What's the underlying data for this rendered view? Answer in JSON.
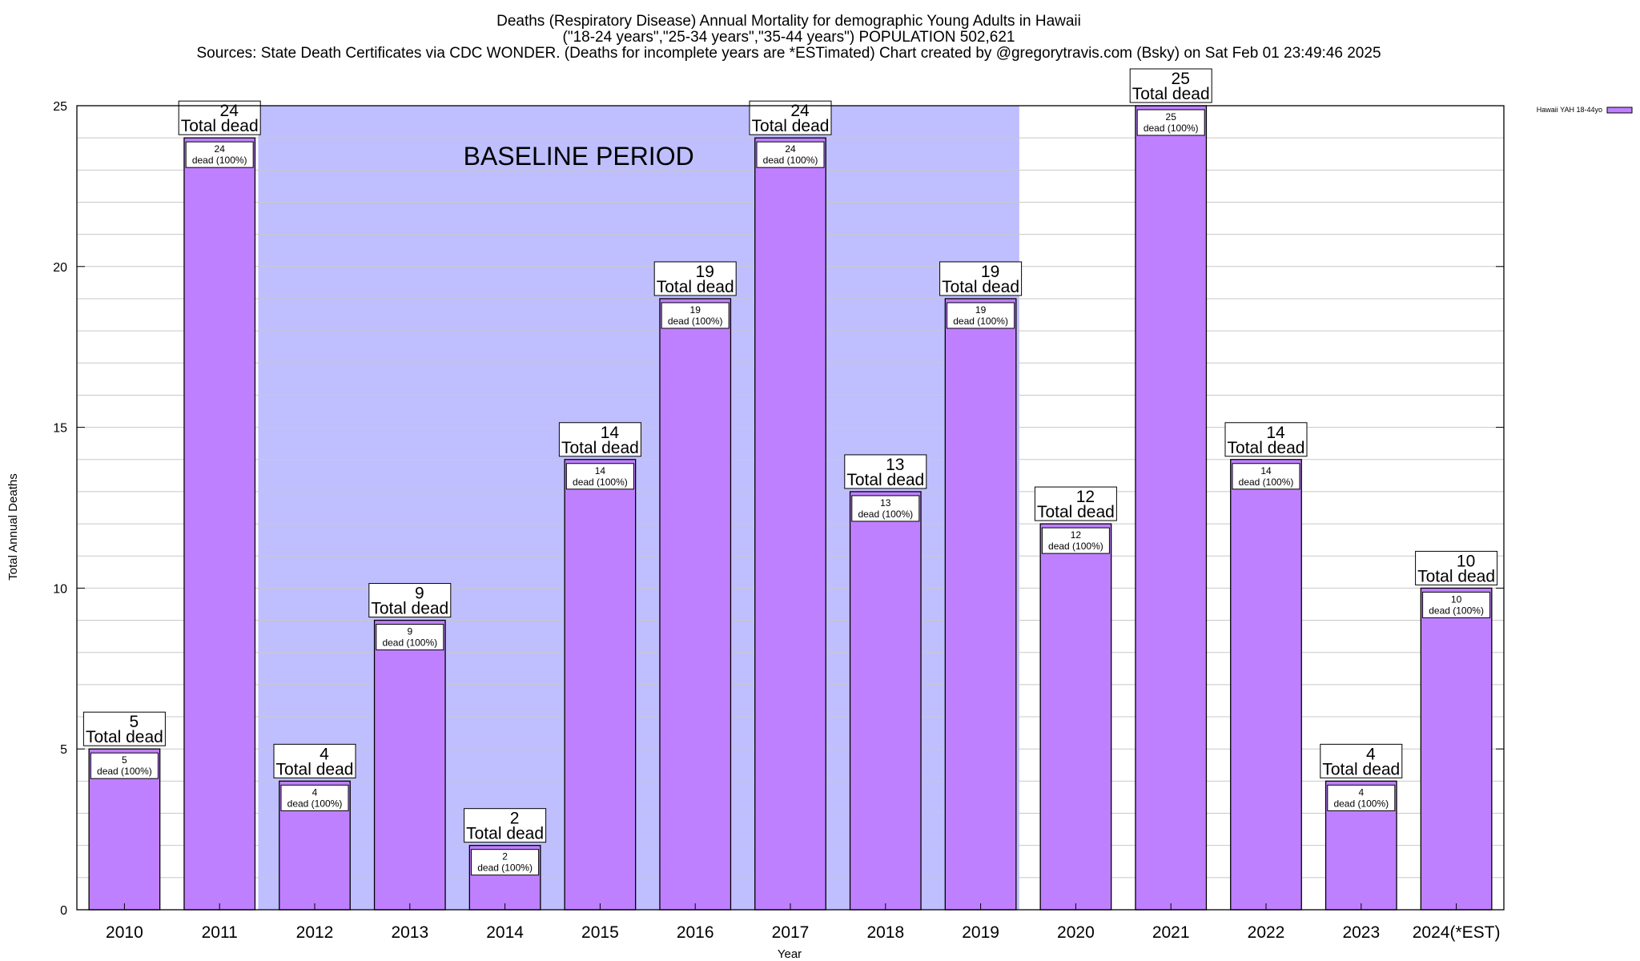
{
  "chart": {
    "title_line1": "Deaths (Respiratory Disease) Annual Mortality for demographic Young Adults in Hawaii",
    "title_line2": "(\"18-24 years\",\"25-34 years\",\"35-44 years\") POPULATION 502,621",
    "title_line3": "Sources: State Death Certificates via CDC WONDER. (Deaths for incomplete years are *ESTimated)               Chart created by @gregorytravis.com (Bsky) on Sat Feb 01 23:49:46 2025",
    "xlabel": "Year",
    "ylabel": "Total Annual Deaths",
    "band_label": "BASELINE PERIOD",
    "legend_label": "Hawaii YAH 18-44yo",
    "total_label": "Total dead",
    "inner_label": "dead (100%)"
  },
  "colors": {
    "bar_fill": "#bf80ff",
    "bar_stroke": "#000000",
    "band_fill": "#bfbfff",
    "grid": "#c8c8c8",
    "label_box_fill": "#ffffff"
  },
  "chart_data": {
    "type": "bar",
    "categories": [
      "2010",
      "2011",
      "2012",
      "2013",
      "2014",
      "2015",
      "2016",
      "2017",
      "2018",
      "2019",
      "2020",
      "2021",
      "2022",
      "2023",
      "2024(*EST)"
    ],
    "series": [
      {
        "name": "Hawaii YAH 18-44yo",
        "values": [
          5,
          24,
          4,
          9,
          2,
          14,
          19,
          24,
          13,
          19,
          12,
          25,
          14,
          4,
          10
        ]
      }
    ],
    "ylim": [
      0,
      25
    ],
    "yticks": [
      0,
      5,
      10,
      15,
      20,
      25
    ],
    "minor_grid_step": 1,
    "baseline_band": {
      "from": "2012",
      "to": "2019"
    },
    "grid": true,
    "legend_position": "top-right",
    "title": "Deaths (Respiratory Disease) Annual Mortality for demographic Young Adults in Hawaii",
    "xlabel": "Year",
    "ylabel": "Total Annual Deaths"
  }
}
